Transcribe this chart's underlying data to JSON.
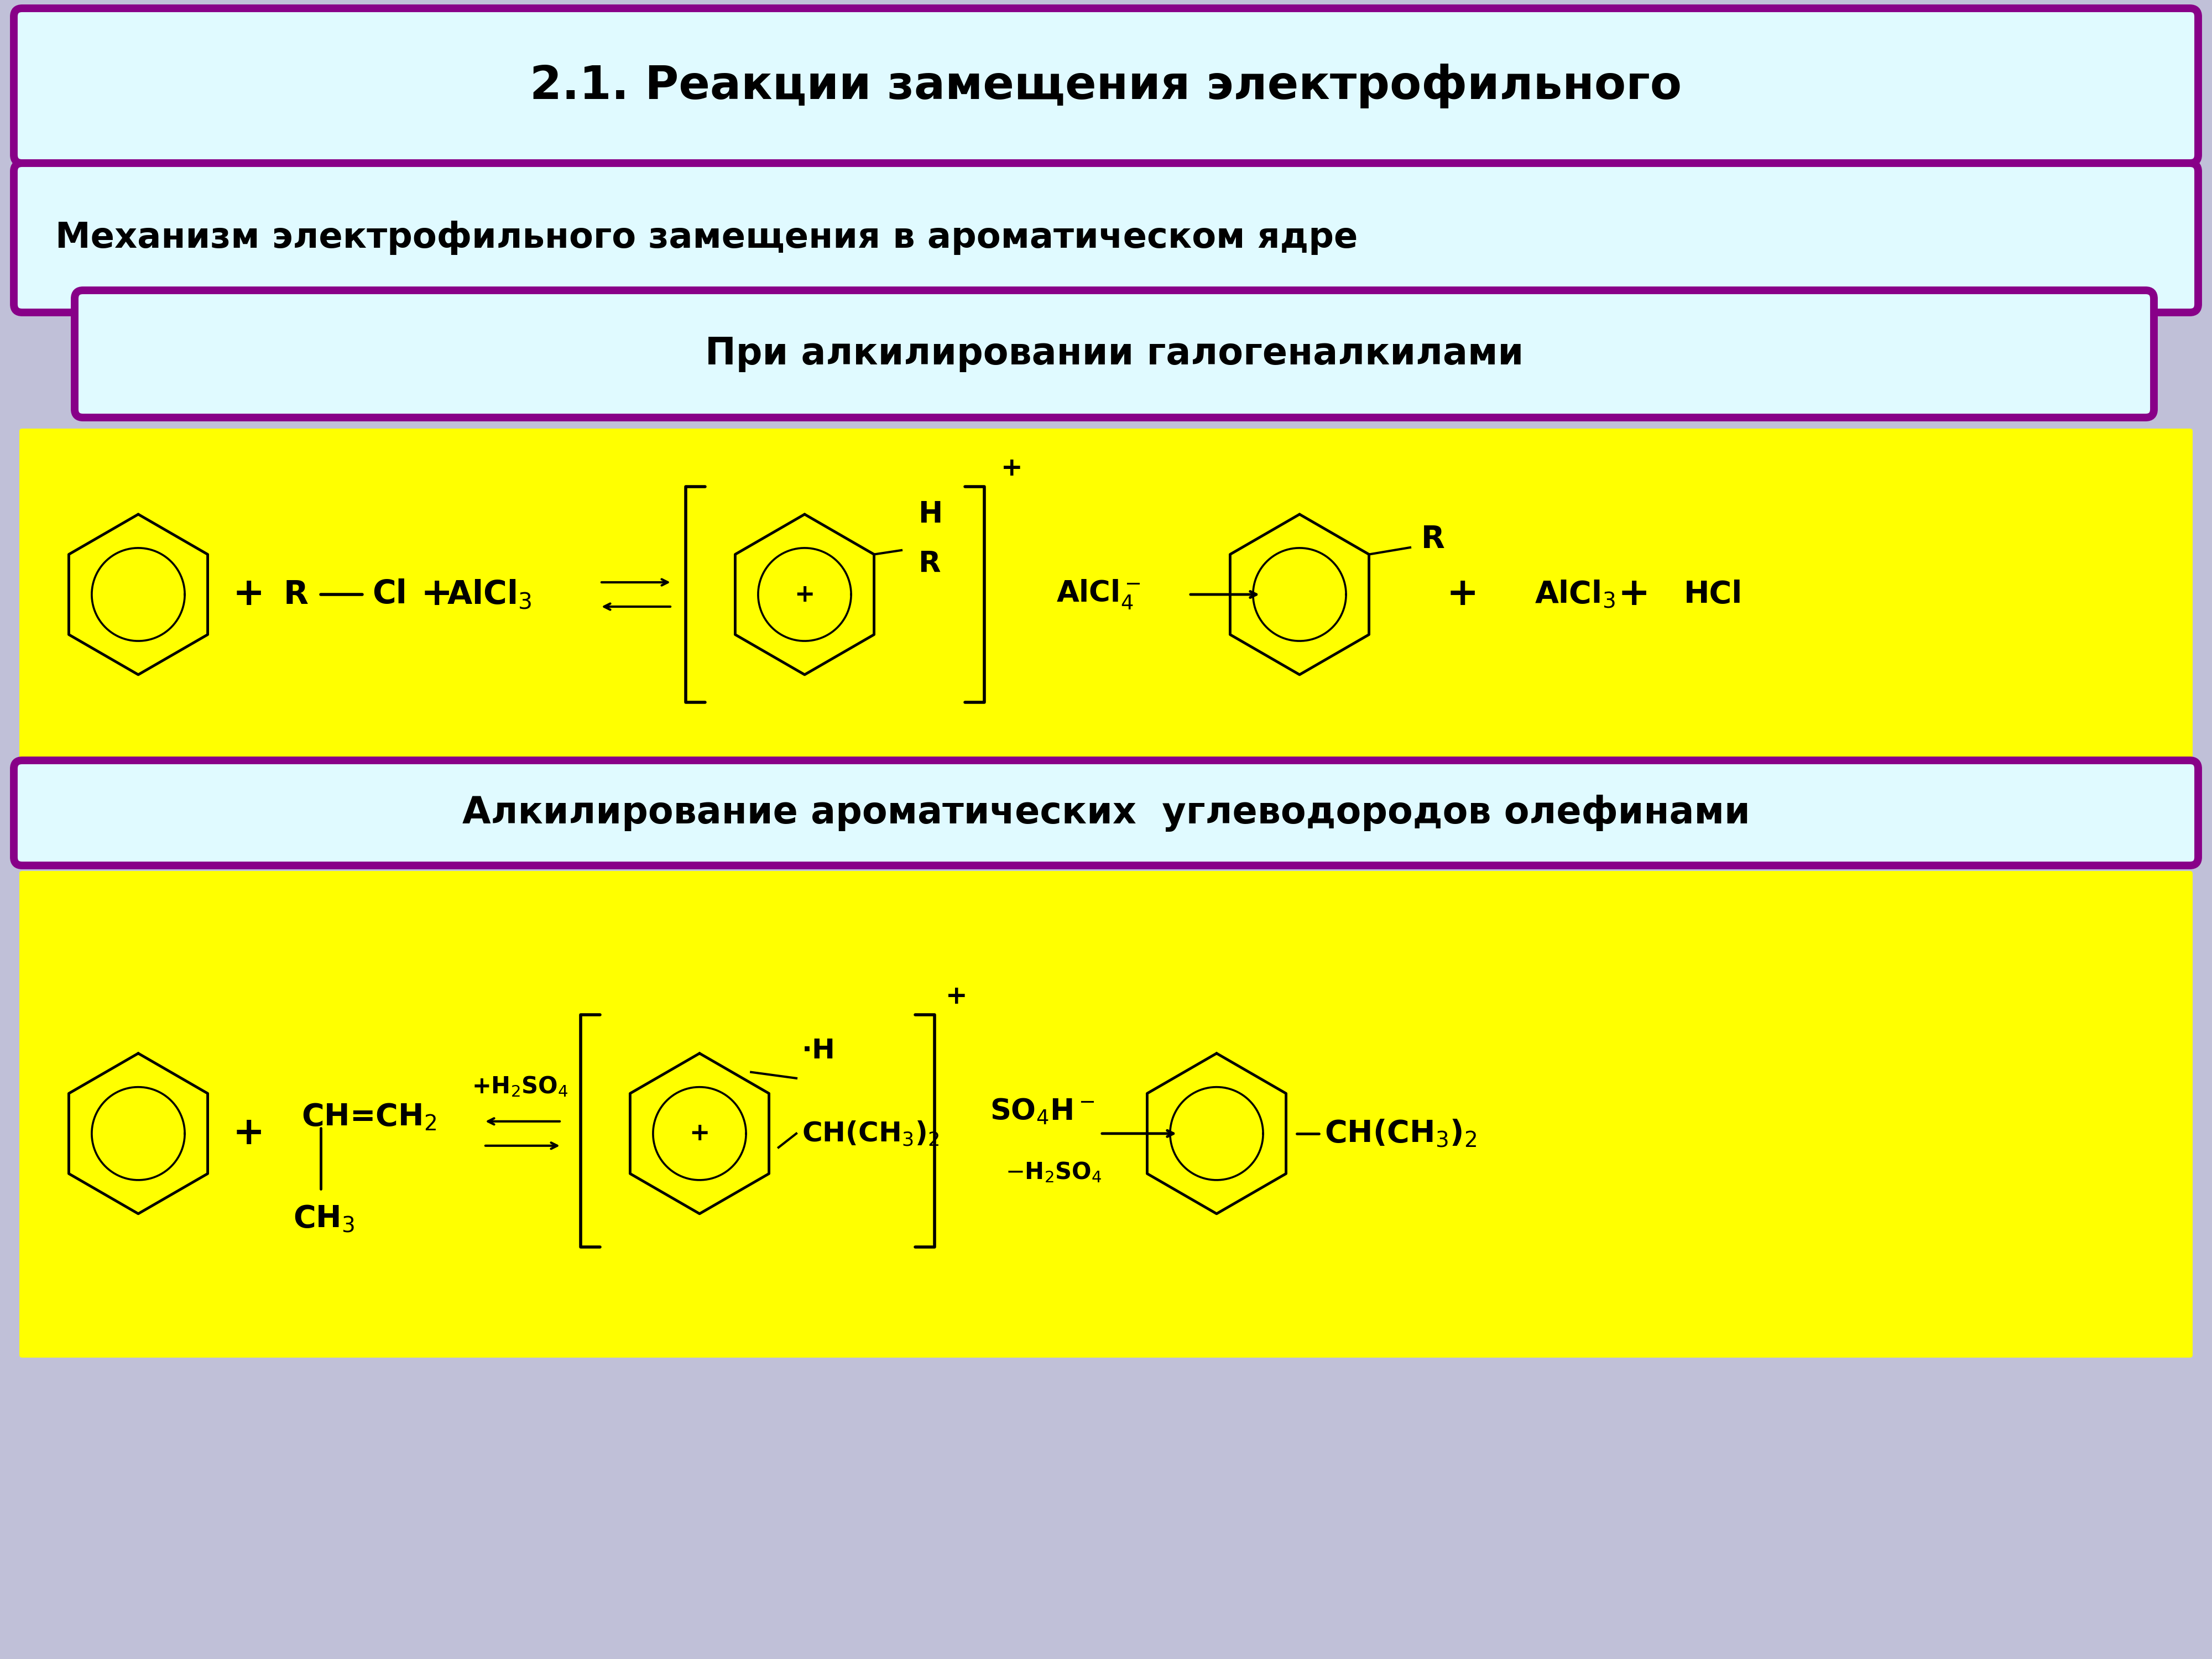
{
  "title": "2.1. Реакции замещения электрофильного",
  "subtitle1": "Механизм электрофильного замещения в ароматическом ядре",
  "subtitle2": "При алкилировании галогеналкилами",
  "subtitle3": "Алкилирование ароматических  углеводородов олефинами",
  "bg_color": "#c0c0d8",
  "title_box_color": "#e0faff",
  "title_border_color": "#880088",
  "sub1_box_color": "#e0faff",
  "sub2_box_color": "#e0faff",
  "sub3_box_color": "#e0faff",
  "reaction1_bg": "#ffff00",
  "reaction2_bg": "#ffff00",
  "text_color": "#000000",
  "title_fontsize": 60,
  "sub1_fontsize": 46,
  "sub2_fontsize": 48,
  "sub3_fontsize": 48,
  "chem_fontsize": 38
}
